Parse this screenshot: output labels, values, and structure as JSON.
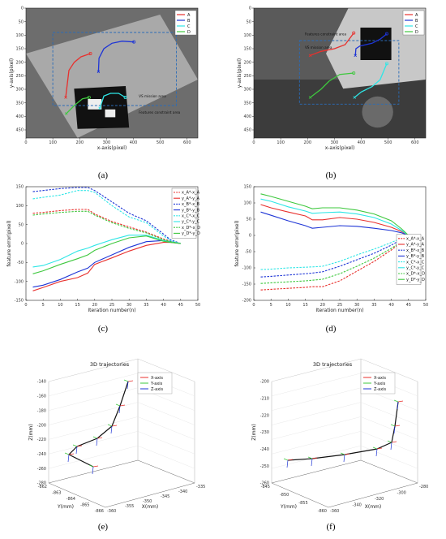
{
  "panels": [
    {
      "label": "(a)"
    },
    {
      "label": "(b)"
    },
    {
      "label": "(c)"
    },
    {
      "label": "(d)"
    },
    {
      "label": "(e)"
    },
    {
      "label": "(f)"
    }
  ],
  "colors": {
    "A": "#e8302d",
    "B": "#1e35d6",
    "C": "#2ee6e6",
    "D": "#3ec83e",
    "box": "#2a6cb8"
  },
  "image_panels": {
    "a": {
      "xlabel": "x-axis(pixel)",
      "ylabel": "y-axis(pixel)",
      "xticks": [
        "0",
        "100",
        "200",
        "300",
        "400",
        "500",
        "600"
      ],
      "yticks": [
        "0",
        "50",
        "100",
        "150",
        "200",
        "250",
        "300",
        "350",
        "400",
        "450"
      ],
      "box_labels": [
        "VS mission area",
        "Features constraint area"
      ],
      "legend": [
        "A",
        "B",
        "C",
        "D"
      ],
      "xlim": [
        0,
        640
      ],
      "ylim": [
        480,
        0
      ],
      "trajectories": [
        {
          "name": "A",
          "points": [
            [
              148,
              330
            ],
            [
              160,
              230
            ],
            [
              180,
              200
            ],
            [
              205,
              180
            ],
            [
              240,
              168
            ]
          ]
        },
        {
          "name": "B",
          "points": [
            [
              270,
              235
            ],
            [
              272,
              185
            ],
            [
              290,
              150
            ],
            [
              320,
              130
            ],
            [
              358,
              122
            ],
            [
              402,
              125
            ]
          ]
        },
        {
          "name": "C",
          "points": [
            [
              275,
              370
            ],
            [
              290,
              325
            ],
            [
              315,
              315
            ],
            [
              345,
              315
            ],
            [
              370,
              330
            ]
          ]
        },
        {
          "name": "D",
          "points": [
            [
              150,
              390
            ],
            [
              165,
              375
            ],
            [
              180,
              360
            ],
            [
              210,
              335
            ],
            [
              235,
              330
            ]
          ]
        }
      ]
    },
    "b": {
      "xlabel": "x-axis(pixel)",
      "ylabel": "y-axis(pixel)",
      "xticks": [
        "0",
        "100",
        "200",
        "300",
        "400",
        "500",
        "600"
      ],
      "yticks": [
        "0",
        "50",
        "100",
        "150",
        "200",
        "250",
        "300",
        "350",
        "400",
        "450"
      ],
      "box_labels": [
        "Features constraint area",
        "VS mission area"
      ],
      "legend": [
        "A",
        "B",
        "C",
        "D"
      ],
      "xlim": [
        0,
        640
      ],
      "ylim": [
        480,
        0
      ],
      "trajectories": [
        {
          "name": "A",
          "points": [
            [
              210,
              175
            ],
            [
              250,
              160
            ],
            [
              300,
              150
            ],
            [
              340,
              135
            ],
            [
              372,
              92
            ]
          ]
        },
        {
          "name": "B",
          "points": [
            [
              378,
              175
            ],
            [
              380,
              150
            ],
            [
              395,
              140
            ],
            [
              440,
              130
            ],
            [
              470,
              115
            ],
            [
              495,
              95
            ]
          ]
        },
        {
          "name": "C",
          "points": [
            [
              375,
              330
            ],
            [
              400,
              310
            ],
            [
              440,
              290
            ],
            [
              470,
              265
            ],
            [
              495,
              205
            ]
          ]
        },
        {
          "name": "D",
          "points": [
            [
              210,
              330
            ],
            [
              250,
              300
            ],
            [
              280,
              270
            ],
            [
              320,
              245
            ],
            [
              372,
              240
            ]
          ]
        }
      ]
    }
  },
  "chart_data": [
    {
      "type": "line",
      "xlabel": "Iteration number(n)",
      "ylabel": "feature error(pixel)",
      "xlim": [
        0,
        50
      ],
      "ylim": [
        -150,
        150
      ],
      "xticks": [
        0,
        5,
        10,
        15,
        20,
        25,
        30,
        35,
        40,
        45,
        50
      ],
      "yticks": [
        -150,
        -100,
        -50,
        0,
        50,
        100,
        150
      ],
      "x": [
        2,
        5,
        10,
        15,
        18,
        20,
        25,
        30,
        35,
        40,
        42,
        45
      ],
      "series": [
        {
          "name": "x_A*-x_A",
          "color": "#e8302d",
          "dash": true,
          "values": [
            80,
            82,
            87,
            90,
            90,
            78,
            58,
            44,
            30,
            12,
            6,
            0
          ]
        },
        {
          "name": "y_A*-y_A",
          "color": "#e8302d",
          "dash": false,
          "values": [
            -125,
            -116,
            -100,
            -90,
            -78,
            -55,
            -38,
            -20,
            -5,
            3,
            3,
            0
          ]
        },
        {
          "name": "x_B*-x_B",
          "color": "#1e35d6",
          "dash": true,
          "values": [
            137,
            140,
            145,
            148,
            148,
            140,
            110,
            80,
            60,
            25,
            10,
            0
          ]
        },
        {
          "name": "y_B*-y_B",
          "color": "#1e35d6",
          "dash": false,
          "values": [
            -115,
            -110,
            -95,
            -75,
            -65,
            -50,
            -30,
            -10,
            5,
            8,
            5,
            0
          ]
        },
        {
          "name": "x_C*-x_C",
          "color": "#2ee6e6",
          "dash": true,
          "values": [
            118,
            122,
            128,
            140,
            140,
            135,
            100,
            70,
            55,
            20,
            8,
            0
          ]
        },
        {
          "name": "y_C*-y_C",
          "color": "#2ee6e6",
          "dash": false,
          "values": [
            -62,
            -58,
            -42,
            -20,
            -12,
            -5,
            10,
            22,
            22,
            8,
            4,
            0
          ]
        },
        {
          "name": "x_D*-x_D",
          "color": "#3ec83e",
          "dash": true,
          "values": [
            75,
            78,
            82,
            85,
            85,
            75,
            55,
            40,
            28,
            10,
            5,
            0
          ]
        },
        {
          "name": "y_D*-y_D",
          "color": "#3ec83e",
          "dash": false,
          "values": [
            -80,
            -72,
            -55,
            -40,
            -30,
            -18,
            0,
            15,
            20,
            6,
            3,
            0
          ]
        }
      ]
    },
    {
      "type": "line",
      "xlabel": "Iteration number(n)",
      "ylabel": "feature error(pixel)",
      "xlim": [
        0,
        50
      ],
      "ylim": [
        -200,
        150
      ],
      "xticks": [
        0,
        5,
        10,
        15,
        20,
        25,
        30,
        35,
        40,
        45,
        50
      ],
      "yticks": [
        -200,
        -150,
        -100,
        -50,
        0,
        50,
        100,
        150
      ],
      "x": [
        2,
        5,
        10,
        15,
        17,
        20,
        25,
        30,
        35,
        40,
        43,
        45
      ],
      "series": [
        {
          "name": "x_A*-x_A",
          "color": "#e8302d",
          "dash": true,
          "values": [
            -168,
            -166,
            -163,
            -160,
            -158,
            -158,
            -140,
            -110,
            -80,
            -45,
            -20,
            0
          ]
        },
        {
          "name": "y_A*-y_A",
          "color": "#e8302d",
          "dash": false,
          "values": [
            95,
            85,
            72,
            60,
            48,
            48,
            55,
            50,
            40,
            25,
            12,
            0
          ]
        },
        {
          "name": "x_B*-x_B",
          "color": "#1e35d6",
          "dash": true,
          "values": [
            -128,
            -126,
            -122,
            -118,
            -116,
            -112,
            -95,
            -75,
            -55,
            -30,
            -12,
            0
          ]
        },
        {
          "name": "y_B*-y_B",
          "color": "#1e35d6",
          "dash": false,
          "values": [
            72,
            62,
            45,
            30,
            22,
            25,
            30,
            28,
            22,
            15,
            8,
            0
          ]
        },
        {
          "name": "x_C*-x_C",
          "color": "#2ee6e6",
          "dash": true,
          "values": [
            -105,
            -104,
            -100,
            -98,
            -97,
            -95,
            -80,
            -60,
            -42,
            -22,
            -8,
            0
          ]
        },
        {
          "name": "y_C*-y_C",
          "color": "#2ee6e6",
          "dash": false,
          "values": [
            112,
            105,
            88,
            75,
            68,
            70,
            72,
            66,
            55,
            35,
            15,
            0
          ]
        },
        {
          "name": "x_D*-x_D",
          "color": "#3ec83e",
          "dash": true,
          "values": [
            -148,
            -146,
            -143,
            -140,
            -138,
            -135,
            -118,
            -95,
            -70,
            -40,
            -18,
            0
          ]
        },
        {
          "name": "y_D*-y_D",
          "color": "#3ec83e",
          "dash": false,
          "values": [
            128,
            120,
            105,
            90,
            82,
            85,
            85,
            78,
            66,
            45,
            20,
            0
          ]
        }
      ]
    }
  ],
  "traj3d": [
    {
      "title": "3D trajectories",
      "legend": [
        {
          "name": "X-axis",
          "color": "#e8302d"
        },
        {
          "name": "Y-axis",
          "color": "#3ec83e"
        },
        {
          "name": "Z-axis",
          "color": "#1e35d6"
        }
      ],
      "zlabel": "Z(mm)",
      "ylabel": "Y(mm)",
      "xlabel": "X(mm)",
      "zticks": [
        "-140",
        "-160",
        "-180",
        "-200",
        "-220",
        "-240",
        "-260",
        "-280"
      ],
      "yticks": [
        "-862",
        "-863",
        "-864",
        "-865",
        "-866"
      ],
      "xticks": [
        "-360",
        "-355",
        "-350",
        "-345",
        "-340",
        "-335"
      ]
    },
    {
      "title": "3D trajectories",
      "legend": [
        {
          "name": "X-axis",
          "color": "#e8302d"
        },
        {
          "name": "Y-axis",
          "color": "#3ec83e"
        },
        {
          "name": "Z-axis",
          "color": "#1e35d6"
        }
      ],
      "zlabel": "Z(mm)",
      "ylabel": "Y(mm)",
      "xlabel": "X(mm)",
      "zticks": [
        "-200",
        "-210",
        "-220",
        "-230",
        "-240",
        "-250",
        "-260"
      ],
      "yticks": [
        "-845",
        "-850",
        "-855",
        "-860"
      ],
      "xticks": [
        "-360",
        "-340",
        "-320",
        "-300",
        "-280"
      ]
    }
  ]
}
